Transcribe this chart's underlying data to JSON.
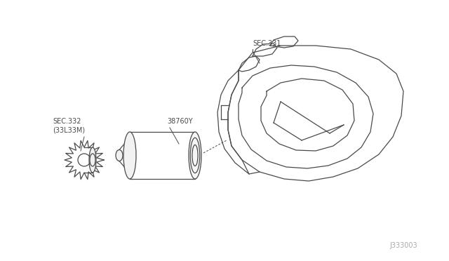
{
  "background_color": "#ffffff",
  "diagram_id": "J333003",
  "labels": {
    "sec331": "SEC.331",
    "part38760Y": "38760Y",
    "sec332": "SEC.332\n(33L33M)"
  },
  "line_color": "#4a4a4a",
  "text_color": "#4a4a4a",
  "font_size": 7.0,
  "diagram_id_color": "#aaaaaa"
}
